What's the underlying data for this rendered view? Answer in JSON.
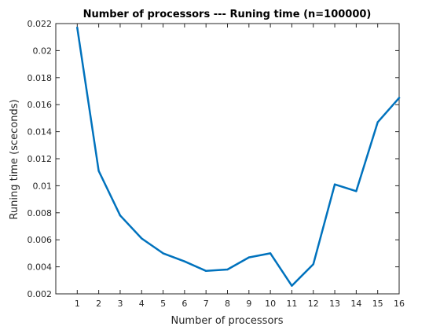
{
  "chart_data": {
    "type": "line",
    "title": "Number of processors --- Runing time (n=100000)",
    "xlabel": "Number of processors",
    "ylabel": "Runing time (sceconds)",
    "xlim": [
      0,
      16
    ],
    "ylim": [
      0.002,
      0.022
    ],
    "xticks": [
      "1",
      "2",
      "3",
      "4",
      "5",
      "6",
      "7",
      "8",
      "9",
      "10",
      "11",
      "12",
      "13",
      "14",
      "15",
      "16"
    ],
    "yticks": [
      "0.002",
      "0.004",
      "0.006",
      "0.008",
      "0.01",
      "0.012",
      "0.014",
      "0.016",
      "0.018",
      "0.02",
      "0.022"
    ],
    "grid": false,
    "line_color": "#0072BD",
    "series": [
      {
        "x": [
          1,
          2,
          3,
          4,
          5,
          6,
          7,
          8,
          9,
          10,
          11,
          12,
          13,
          14,
          15,
          16
        ],
        "values": [
          0.0217,
          0.0111,
          0.0078,
          0.0061,
          0.005,
          0.0044,
          0.0037,
          0.0038,
          0.0047,
          0.005,
          0.0026,
          0.0042,
          0.0101,
          0.0096,
          0.0147,
          0.0165
        ]
      }
    ]
  }
}
